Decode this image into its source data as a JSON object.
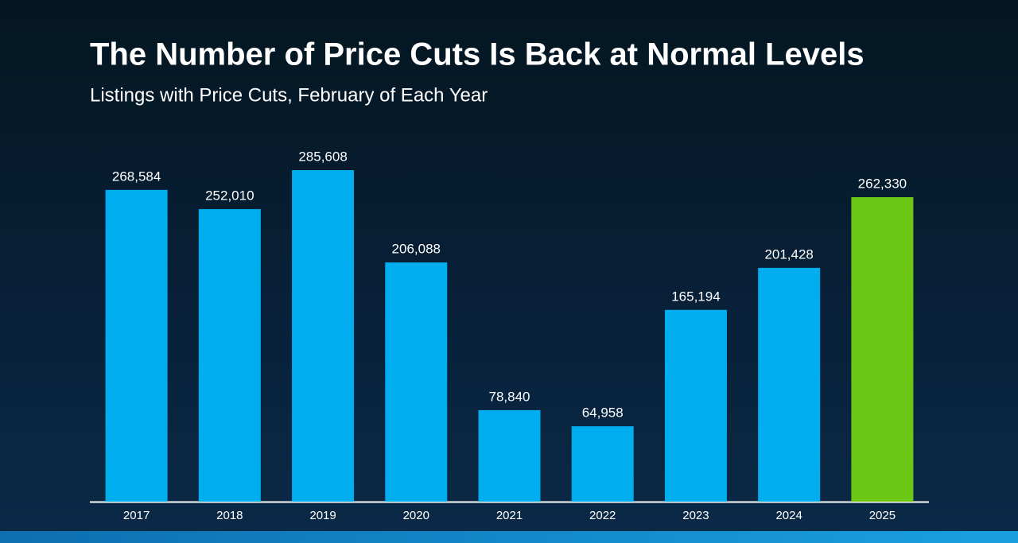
{
  "chart_data": {
    "type": "bar",
    "title": "The Number of Price Cuts Is Back at Normal Levels",
    "subtitle": "Listings with Price Cuts, February of Each Year",
    "categories": [
      "2017",
      "2018",
      "2019",
      "2020",
      "2021",
      "2022",
      "2023",
      "2024",
      "2025"
    ],
    "values": [
      268584,
      252010,
      285608,
      206088,
      78840,
      64958,
      165194,
      201428,
      262330
    ],
    "value_labels": [
      "268,584",
      "252,010",
      "285,608",
      "206,088",
      "78,840",
      "64,958",
      "165,194",
      "201,428",
      "262,330"
    ],
    "colors": [
      "#00aeef",
      "#00aeef",
      "#00aeef",
      "#00aeef",
      "#00aeef",
      "#00aeef",
      "#00aeef",
      "#00aeef",
      "#6cc715"
    ]
  }
}
